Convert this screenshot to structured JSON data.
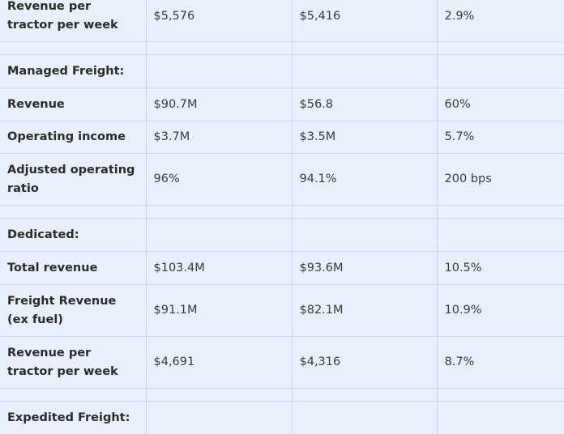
{
  "rows": [
    {
      "kind": "data",
      "label": "Revenue per tractor per week",
      "current": "$5,576",
      "prior": "$5,416",
      "change": "2.9%"
    },
    {
      "kind": "spacer"
    },
    {
      "kind": "section",
      "label": "Managed Freight:"
    },
    {
      "kind": "data",
      "label": "Revenue",
      "current": "$90.7M",
      "prior": "$56.8",
      "change": "60%"
    },
    {
      "kind": "data",
      "label": "Operating income",
      "current": "$3.7M",
      "prior": "$3.5M",
      "change": "5.7%"
    },
    {
      "kind": "data",
      "label": "Adjusted operating ratio",
      "current": "96%",
      "prior": "94.1%",
      "change": "200 bps"
    },
    {
      "kind": "spacer"
    },
    {
      "kind": "section",
      "label": "Dedicated:"
    },
    {
      "kind": "data",
      "label": "Total revenue",
      "current": "$103.4M",
      "prior": "$93.6M",
      "change": "10.5%"
    },
    {
      "kind": "data",
      "label": "Freight Revenue (ex fuel)",
      "current": "$91.1M",
      "prior": "$82.1M",
      "change": "10.9%"
    },
    {
      "kind": "data",
      "label": "Revenue per tractor per week",
      "current": "$4,691",
      "prior": "$4,316",
      "change": "8.7%"
    },
    {
      "kind": "spacer"
    },
    {
      "kind": "section",
      "label": "Expedited Freight:"
    }
  ]
}
